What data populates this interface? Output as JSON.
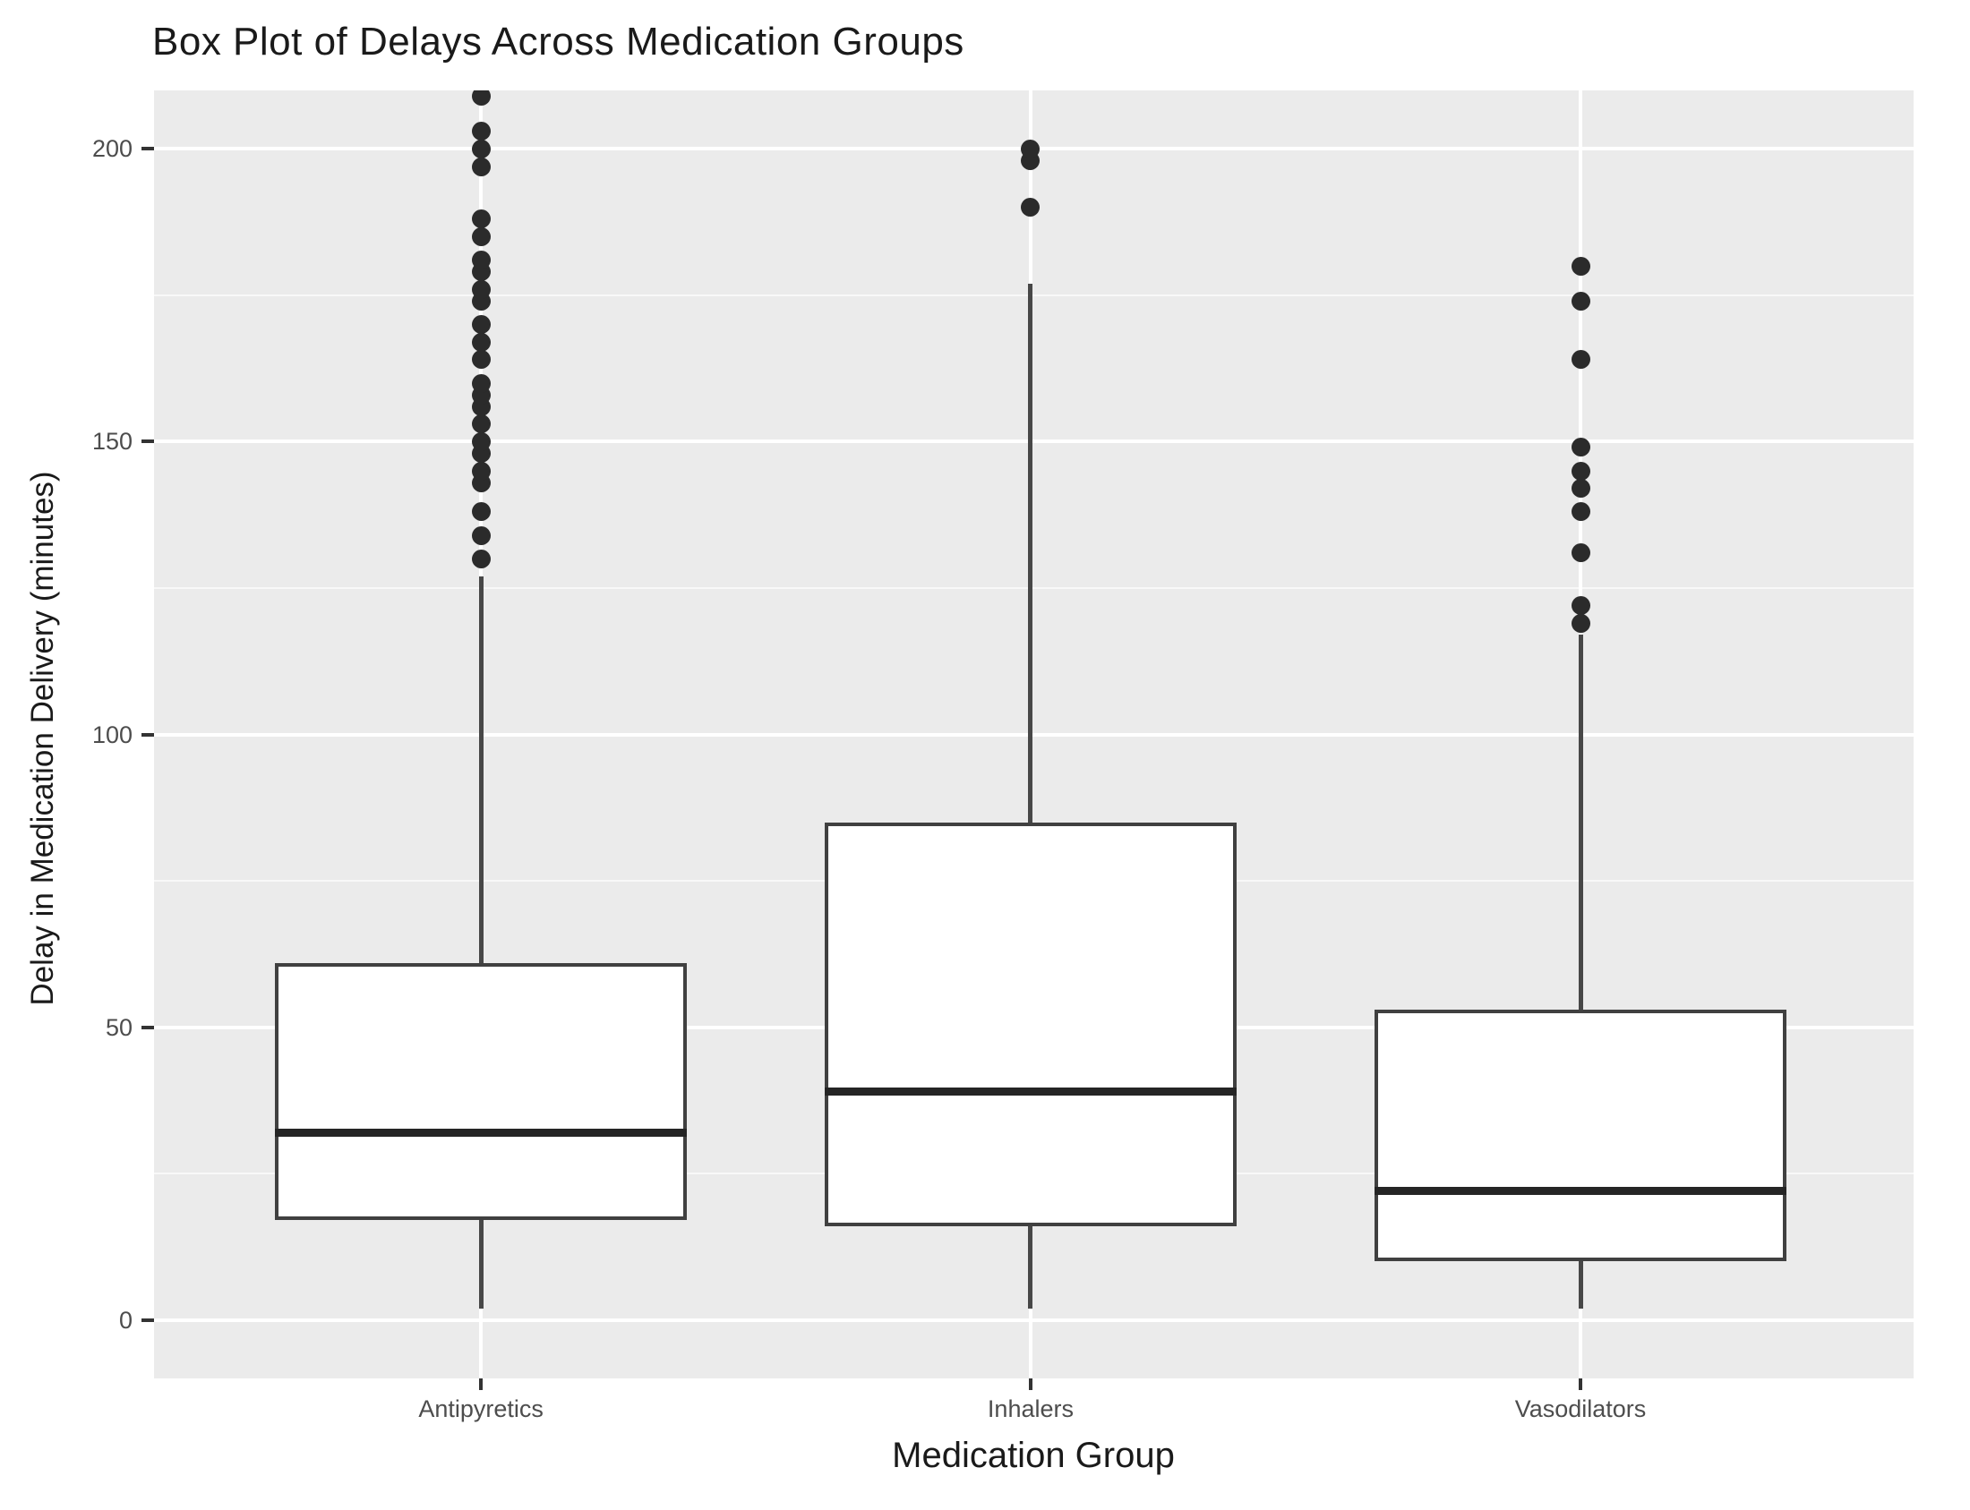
{
  "chart_data": {
    "type": "boxplot",
    "title": "Box Plot of Delays Across Medication Groups",
    "xlabel": "Medication Group",
    "ylabel": "Delay in Medication Delivery (minutes)",
    "categories": [
      "Antipyretics",
      "Inhalers",
      "Vasodilators"
    ],
    "y_ticks": [
      0,
      50,
      100,
      150,
      200
    ],
    "y_minor_gridlines": [
      25,
      75,
      125,
      175
    ],
    "ylim": [
      -10,
      210
    ],
    "grid": "on",
    "legend": "none",
    "series": [
      {
        "group": "Antipyretics",
        "whisker_low": 2,
        "q1": 17,
        "median": 32,
        "q3": 61,
        "whisker_high": 127,
        "outliers": [
          130,
          134,
          138,
          143,
          145,
          148,
          150,
          153,
          156,
          158,
          160,
          164,
          167,
          170,
          174,
          176,
          179,
          181,
          185,
          188,
          197,
          200,
          203,
          209
        ]
      },
      {
        "group": "Inhalers",
        "whisker_low": 2,
        "q1": 16,
        "median": 39,
        "q3": 85,
        "whisker_high": 177,
        "outliers": [
          190,
          198,
          200
        ]
      },
      {
        "group": "Vasodilators",
        "whisker_low": 2,
        "q1": 10,
        "median": 22,
        "q3": 53,
        "whisker_high": 117,
        "outliers": [
          119,
          122,
          131,
          138,
          142,
          145,
          149,
          164,
          174,
          180
        ]
      }
    ],
    "colors": {
      "panel_bg": "#ebebeb",
      "gridline": "#ffffff",
      "box_fill": "#ffffff",
      "box_border": "#404040",
      "whisker": "#474747",
      "median": "#252525",
      "outlier": "#2b2b2b",
      "tick_label": "#4d4d4d",
      "title_text": "#1a1a1a"
    }
  }
}
